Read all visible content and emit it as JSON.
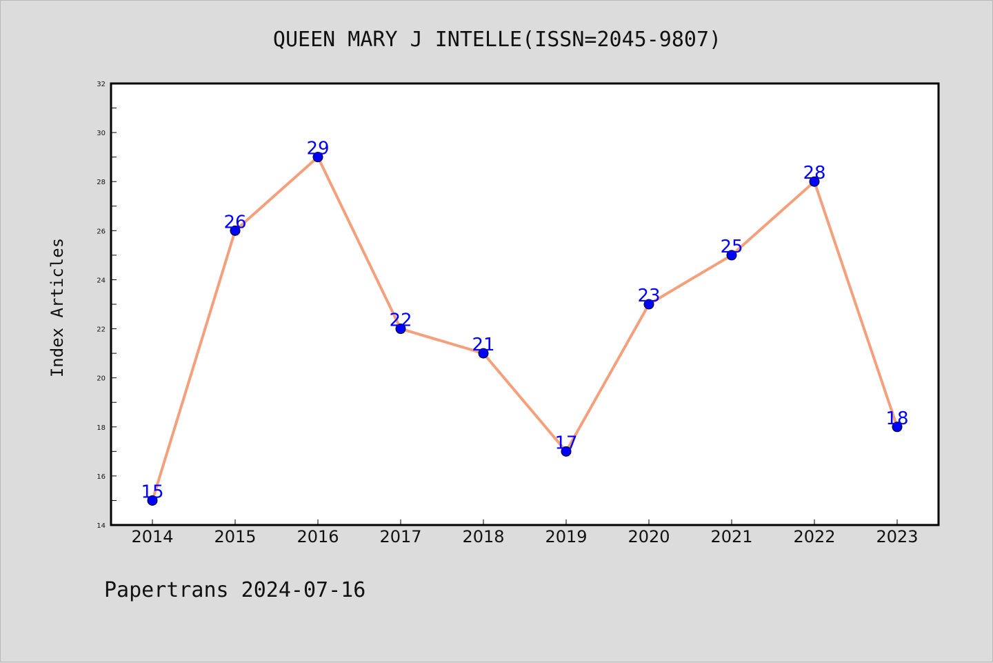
{
  "chart_data": {
    "type": "line",
    "title": "QUEEN MARY J INTELLE(ISSN=2045-9807)",
    "xlabel": "",
    "ylabel": "Index Articles",
    "categories": [
      "2014",
      "2015",
      "2016",
      "2017",
      "2018",
      "2019",
      "2020",
      "2021",
      "2022",
      "2023"
    ],
    "values": [
      15,
      26,
      29,
      22,
      21,
      17,
      23,
      25,
      28,
      18
    ],
    "ylim": [
      14,
      32
    ],
    "yticks": [
      14,
      16,
      18,
      20,
      22,
      24,
      26,
      28,
      30,
      32
    ],
    "grid": false,
    "legend": "none",
    "line_color": "#f4a07c",
    "marker_color": "#0000ff",
    "label_color": "#0000ff"
  },
  "footer": "Papertrans 2024-07-16"
}
